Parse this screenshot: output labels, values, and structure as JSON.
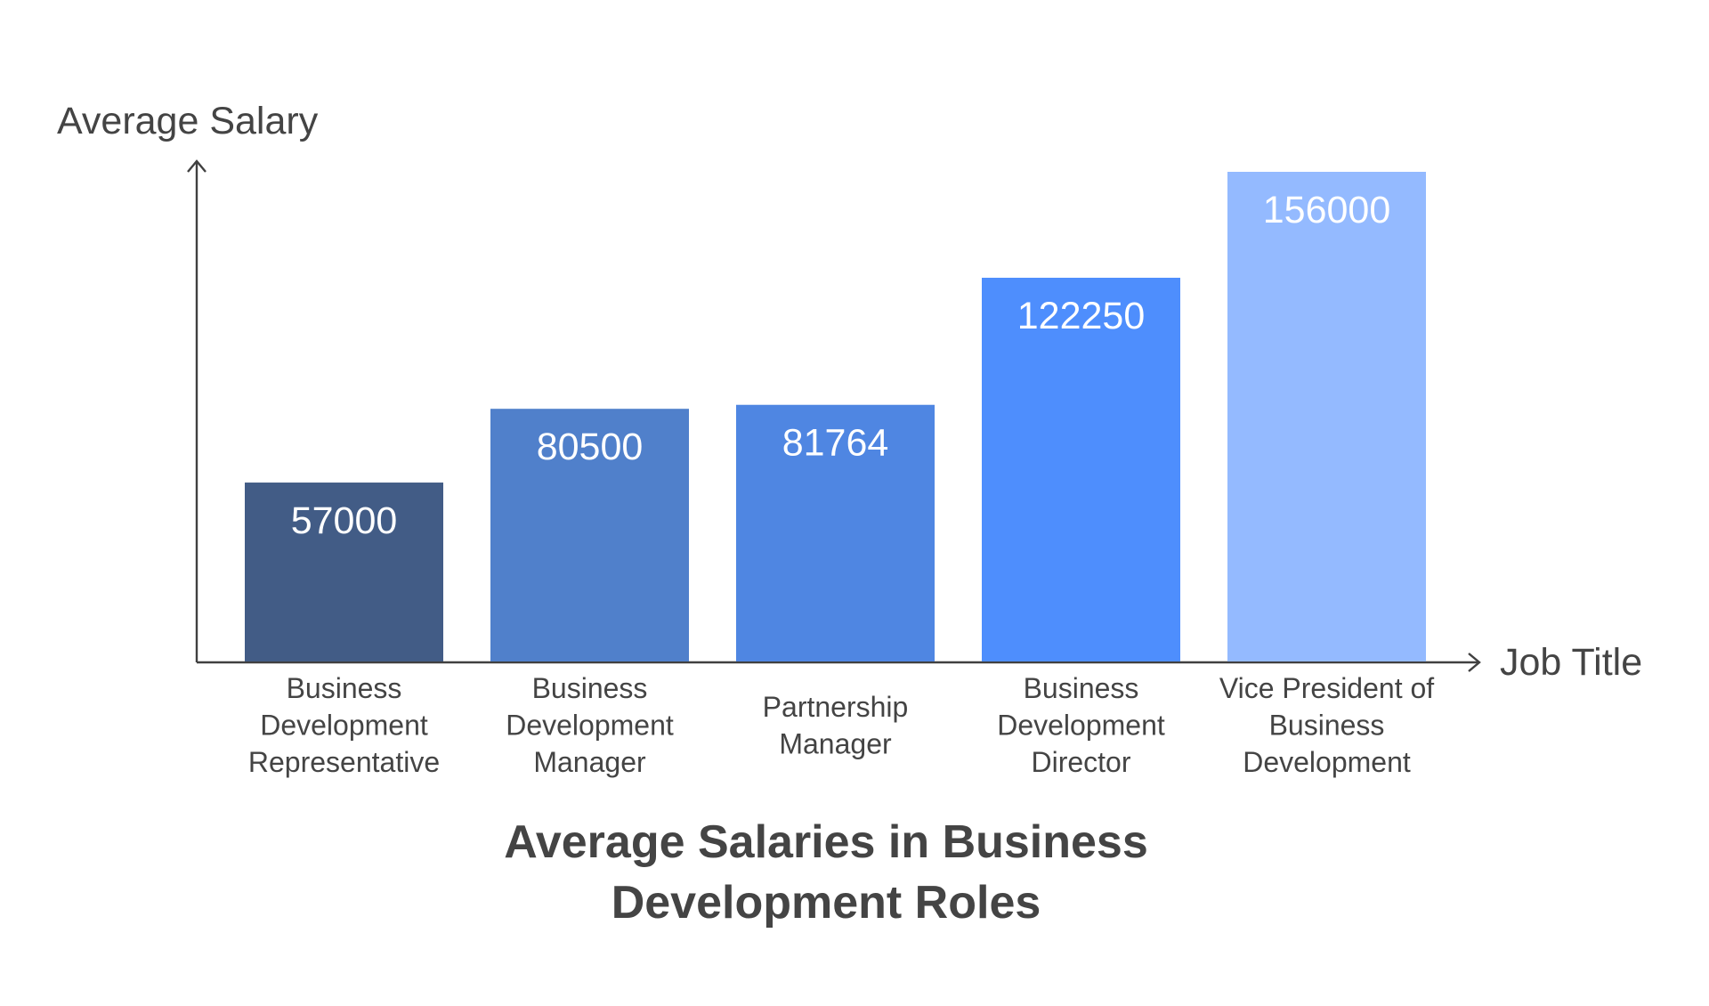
{
  "chart_data": {
    "type": "bar",
    "title": "Average Salaries in Business Development Roles",
    "title_lines": [
      "Average Salaries in Business",
      "Development Roles"
    ],
    "xlabel": "Job Title",
    "ylabel": "Average Salary",
    "categories": [
      "Business Development Representative",
      "Business Development Manager",
      "Partnership Manager",
      "Business Development Director",
      "Vice President of Business Development"
    ],
    "category_label_lines": [
      [
        "Business",
        "Development",
        "Representative"
      ],
      [
        "Business",
        "Development",
        "Manager"
      ],
      [
        "Partnership",
        "Manager"
      ],
      [
        "Business",
        "Development",
        "Director"
      ],
      [
        "Vice President of",
        "Business",
        "Development"
      ]
    ],
    "values": [
      57000,
      80500,
      81764,
      122250,
      156000
    ],
    "value_labels": [
      "57000",
      "80500",
      "81764",
      "122250",
      "156000"
    ],
    "bar_colors": [
      "#425c86",
      "#5080cb",
      "#4f86e2",
      "#4e8efd",
      "#94baff"
    ],
    "ylim": [
      0,
      156000
    ],
    "grid": false,
    "legend": "none",
    "axis_color": "#404040",
    "text_color": "#444444",
    "value_label_color": "#ffffff"
  }
}
